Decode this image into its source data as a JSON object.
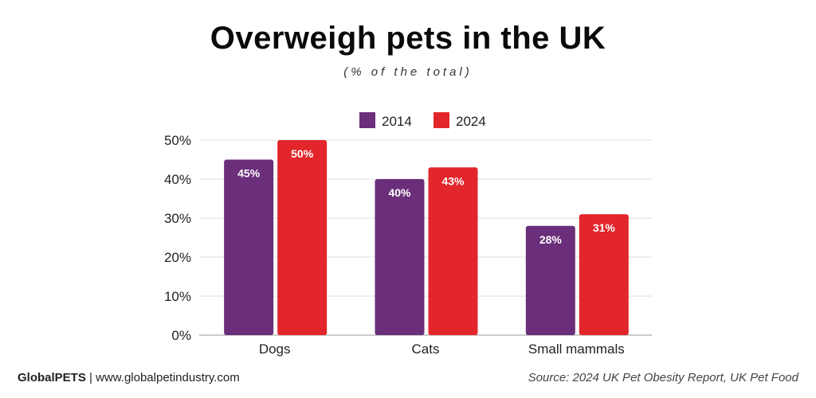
{
  "title": "Overweigh pets in the UK",
  "subtitle": "(% of the total)",
  "footer": {
    "brand": "GlobalPETS",
    "separator": "|",
    "website": "www.globalpetindustry.com",
    "source": "Source: 2024 UK Pet Obesity Report, UK Pet Food"
  },
  "chart_data": {
    "type": "bar",
    "title": "Overweigh pets in the UK",
    "subtitle": "(% of the total)",
    "categories": [
      "Dogs",
      "Cats",
      "Small mammals"
    ],
    "series": [
      {
        "name": "2014",
        "values": [
          45,
          40,
          28
        ],
        "labels": [
          "45%",
          "40%",
          "28%"
        ],
        "color": "#6a2e7a"
      },
      {
        "name": "2024",
        "values": [
          50,
          43,
          31
        ],
        "labels": [
          "50%",
          "43%",
          "31%"
        ],
        "color": "#e2262b"
      }
    ],
    "ylim": [
      0,
      50
    ],
    "yticks": [
      0,
      10,
      20,
      30,
      40,
      50
    ],
    "ytick_labels": [
      "0%",
      "10%",
      "20%",
      "30%",
      "40%",
      "50%"
    ],
    "grid": true,
    "legend": "top-center",
    "xlabel": "",
    "ylabel": ""
  }
}
